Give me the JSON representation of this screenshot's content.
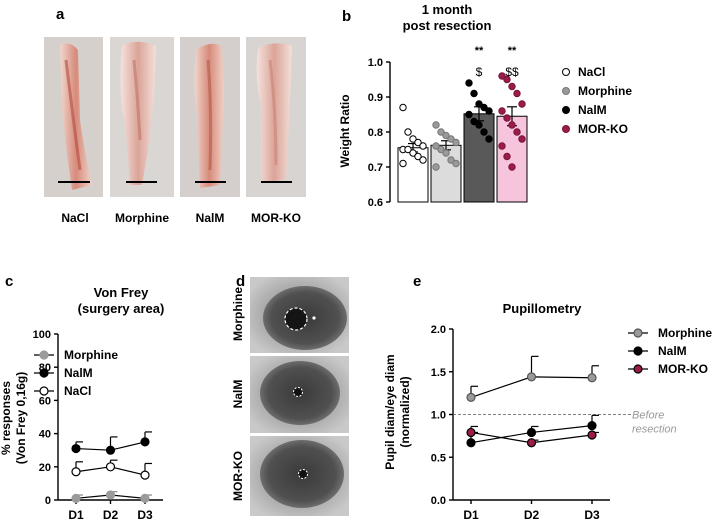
{
  "panel_labels": {
    "a": "a",
    "b": "b",
    "c": "c",
    "d": "d",
    "e": "e"
  },
  "panel_a": {
    "sample_labels": [
      "NaCl",
      "Morphine",
      "NalM",
      "MOR-KO"
    ]
  },
  "panel_d": {
    "row_labels": [
      "Morphine",
      "NalM",
      "MOR-KO"
    ]
  },
  "colors": {
    "nacl": "#ffffff",
    "morphine": "#9a9a9a",
    "nalm": "#000000",
    "morko": "#9b1c4a",
    "bar_nacl": "#ffffff",
    "bar_morphine": "#dcdcdc",
    "bar_nalm": "#595959",
    "bar_morko": "#f7c4dd"
  },
  "chart_data": [
    {
      "id": "b",
      "type": "bar",
      "title": "1 month",
      "subtitle": "post resection",
      "ylabel": "Weight Ratio",
      "ylim": [
        0.6,
        1.0
      ],
      "yticks": [
        "0.6",
        "0.7",
        "0.8",
        "0.9",
        "1.0"
      ],
      "categories": [
        "NaCl",
        "Morphine",
        "NalM",
        "MOR-KO"
      ],
      "values": [
        0.755,
        0.762,
        0.852,
        0.845
      ],
      "sem": [
        0.012,
        0.013,
        0.02,
        0.027
      ],
      "significance_top": [
        "",
        "",
        "**",
        "**"
      ],
      "significance_bottom": [
        "",
        "",
        "$",
        "$$"
      ],
      "legend": [
        "NaCl",
        "Morphine",
        "NalM",
        "MOR-KO"
      ],
      "legend_position": "right",
      "points": [
        [
          0.87,
          0.8,
          0.78,
          0.77,
          0.76,
          0.75,
          0.75,
          0.74,
          0.73,
          0.72,
          0.71
        ],
        [
          0.82,
          0.8,
          0.79,
          0.78,
          0.77,
          0.76,
          0.75,
          0.74,
          0.72,
          0.71,
          0.7
        ],
        [
          0.94,
          0.91,
          0.88,
          0.87,
          0.86,
          0.85,
          0.83,
          0.82,
          0.8,
          0.78
        ],
        [
          0.96,
          0.95,
          0.93,
          0.91,
          0.88,
          0.86,
          0.84,
          0.82,
          0.8,
          0.78,
          0.76,
          0.73,
          0.7
        ]
      ]
    },
    {
      "id": "c",
      "type": "line",
      "title": "Von Frey",
      "subtitle": "(surgery area)",
      "ylabel": "% responses",
      "ylabel2": "(Von Frey 0,16g)",
      "categories": [
        "D1",
        "D2",
        "D3"
      ],
      "ylim": [
        0,
        100
      ],
      "yticks": [
        "0",
        "20",
        "40",
        "60",
        "80",
        "100"
      ],
      "legend_position": "top-right",
      "series": [
        {
          "name": "Morphine",
          "values": [
            1,
            3,
            1
          ],
          "err": [
            2,
            2,
            2
          ],
          "color": "#9a9a9a",
          "fill": "#9a9a9a"
        },
        {
          "name": "NalM",
          "values": [
            31,
            30,
            35
          ],
          "err": [
            4,
            8,
            6
          ],
          "color": "#000000",
          "fill": "#000000"
        },
        {
          "name": "NaCl",
          "values": [
            17,
            20,
            15
          ],
          "err": [
            6,
            4,
            7
          ],
          "color": "#000000",
          "fill": "#ffffff"
        }
      ]
    },
    {
      "id": "e",
      "type": "line",
      "title": "Pupillometry",
      "ylabel": "Pupil diam/eye diam",
      "ylabel2": "(normalized)",
      "categories": [
        "D1",
        "D2",
        "D3"
      ],
      "ylim": [
        0,
        2.0
      ],
      "yticks": [
        "0.0",
        "0.5",
        "1.0",
        "1.5",
        "2.0"
      ],
      "reference_line": 1.0,
      "reference_label": [
        "Before",
        "resection"
      ],
      "legend_position": "top-right",
      "series": [
        {
          "name": "Morphine",
          "values": [
            1.2,
            1.44,
            1.43
          ],
          "err": [
            0.13,
            0.24,
            0.14
          ],
          "color": "#555555",
          "fill": "#9a9a9a"
        },
        {
          "name": "NalM",
          "values": [
            0.67,
            0.79,
            0.87
          ],
          "err": [
            0.12,
            0.07,
            0.12
          ],
          "color": "#000000",
          "fill": "#000000"
        },
        {
          "name": "MOR-KO",
          "values": [
            0.79,
            0.67,
            0.76
          ],
          "err": [
            0.07,
            0.03,
            0.03
          ],
          "color": "#000000",
          "fill": "#9b1c4a"
        }
      ]
    }
  ]
}
